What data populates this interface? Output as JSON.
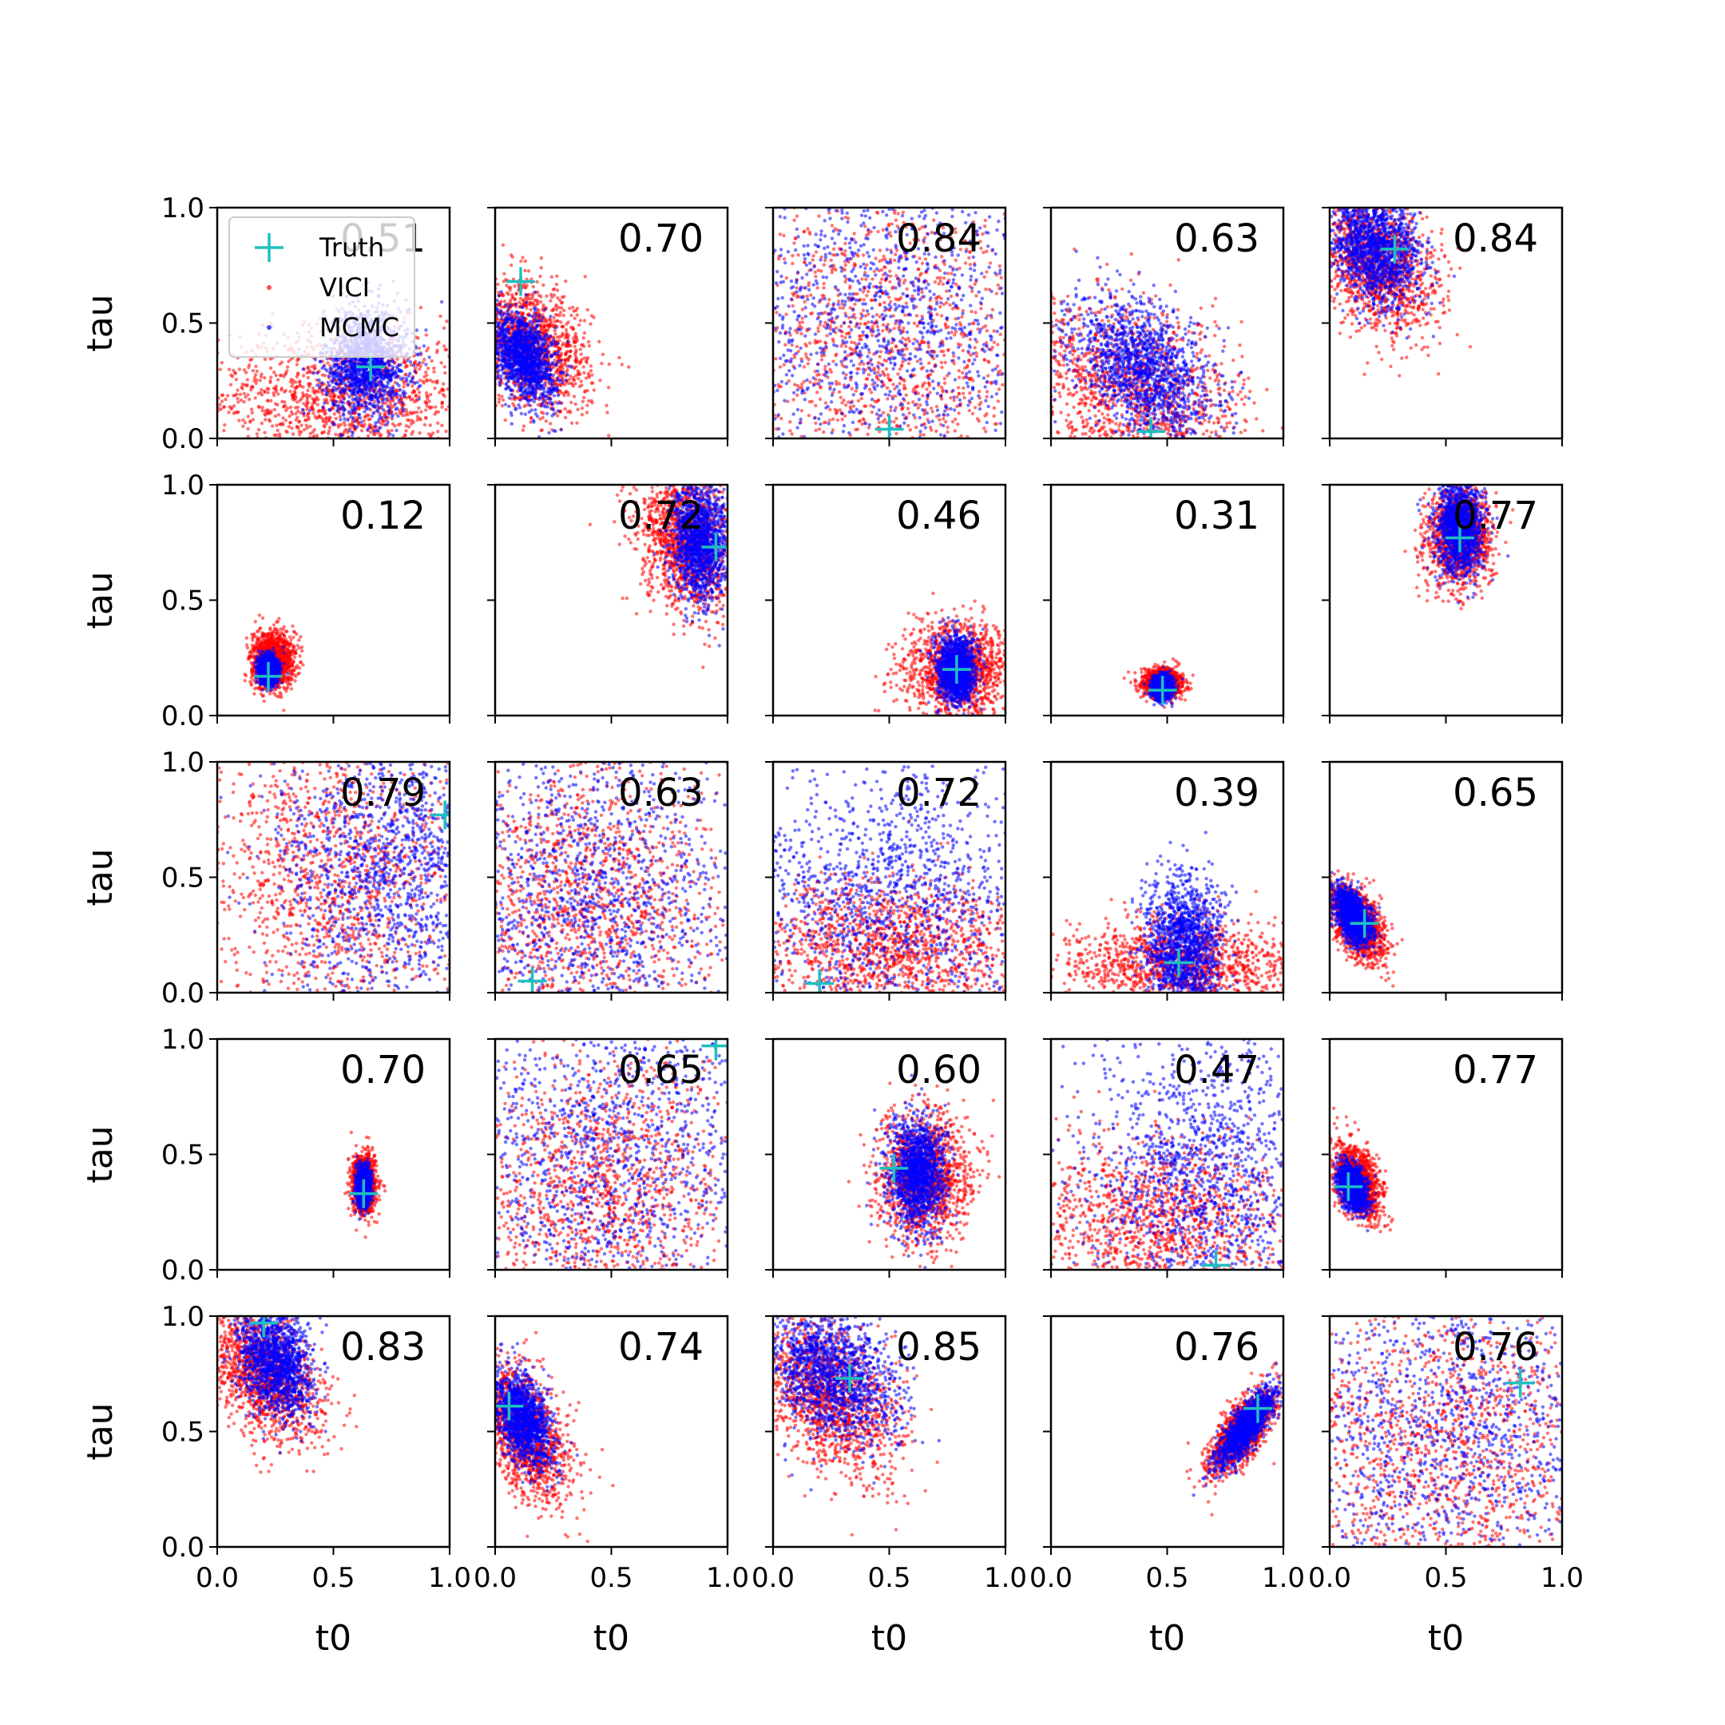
{
  "chart_data": {
    "type": "scatter",
    "layout": "5x5 grid of subplots",
    "xlabel": "t0",
    "ylabel": "tau",
    "xlim": [
      0,
      1
    ],
    "ylim": [
      0,
      1
    ],
    "xticks": [
      "0.0",
      "0.5",
      "1.0"
    ],
    "yticks": [
      "0.0",
      "0.5",
      "1.0"
    ],
    "legend": {
      "placement": "upper-left of first subplot",
      "entries": [
        {
          "label": "Truth",
          "marker": "plus",
          "color": "#1fbfbf"
        },
        {
          "label": "VICI",
          "marker": "dot",
          "color": "#ff0000"
        },
        {
          "label": "MCMC",
          "marker": "dot",
          "color": "#0000ff"
        }
      ]
    },
    "colors": {
      "truth": "#1fbfbf",
      "vici": "#ff0000",
      "mcmc": "#0000ff"
    },
    "panels": [
      {
        "score": "0.51",
        "truth": [
          0.66,
          0.31
        ],
        "vici": {
          "mean": [
            0.55,
            0.18
          ],
          "sd": [
            0.3,
            0.15
          ],
          "rho": 0.0
        },
        "mcmc": {
          "mean": [
            0.64,
            0.33
          ],
          "sd": [
            0.09,
            0.12
          ],
          "rho": 0.0
        }
      },
      {
        "score": "0.70",
        "truth": [
          0.11,
          0.68
        ],
        "vici": {
          "mean": [
            0.15,
            0.4
          ],
          "sd": [
            0.13,
            0.14
          ],
          "rho": -0.3
        },
        "mcmc": {
          "mean": [
            0.12,
            0.36
          ],
          "sd": [
            0.07,
            0.1
          ],
          "rho": -0.4
        }
      },
      {
        "score": "0.84",
        "truth": [
          0.5,
          0.04
        ],
        "vici": {
          "mean": [
            0.5,
            0.4
          ],
          "sd": [
            0.35,
            0.35
          ],
          "rho": 0.0
        },
        "mcmc": {
          "mean": [
            0.5,
            0.5
          ],
          "sd": [
            0.4,
            0.4
          ],
          "rho": 0.0
        }
      },
      {
        "score": "0.63",
        "truth": [
          0.43,
          0.03
        ],
        "vici": {
          "mean": [
            0.35,
            0.2
          ],
          "sd": [
            0.25,
            0.2
          ],
          "rho": -0.3
        },
        "mcmc": {
          "mean": [
            0.4,
            0.3
          ],
          "sd": [
            0.15,
            0.15
          ],
          "rho": -0.4
        }
      },
      {
        "score": "0.84",
        "truth": [
          0.28,
          0.82
        ],
        "vici": {
          "mean": [
            0.2,
            0.75
          ],
          "sd": [
            0.13,
            0.15
          ],
          "rho": -0.3
        },
        "mcmc": {
          "mean": [
            0.2,
            0.82
          ],
          "sd": [
            0.1,
            0.12
          ],
          "rho": -0.2
        }
      },
      {
        "score": "0.12",
        "truth": [
          0.22,
          0.17
        ],
        "vici": {
          "mean": [
            0.24,
            0.24
          ],
          "sd": [
            0.045,
            0.06
          ],
          "rho": 0.0
        },
        "mcmc": {
          "mean": [
            0.22,
            0.2
          ],
          "sd": [
            0.02,
            0.03
          ],
          "rho": 0.0
        }
      },
      {
        "score": "0.72",
        "truth": [
          0.95,
          0.73
        ],
        "vici": {
          "mean": [
            0.82,
            0.75
          ],
          "sd": [
            0.1,
            0.15
          ],
          "rho": -0.2
        },
        "mcmc": {
          "mean": [
            0.88,
            0.75
          ],
          "sd": [
            0.06,
            0.13
          ],
          "rho": -0.1
        }
      },
      {
        "score": "0.46",
        "truth": [
          0.79,
          0.2
        ],
        "vici": {
          "mean": [
            0.8,
            0.2
          ],
          "sd": [
            0.12,
            0.1
          ],
          "rho": 0.0
        },
        "mcmc": {
          "mean": [
            0.79,
            0.2
          ],
          "sd": [
            0.04,
            0.07
          ],
          "rho": 0.0
        }
      },
      {
        "score": "0.31",
        "truth": [
          0.48,
          0.11
        ],
        "vici": {
          "mean": [
            0.48,
            0.14
          ],
          "sd": [
            0.04,
            0.03
          ],
          "rho": 0.0
        },
        "mcmc": {
          "mean": [
            0.48,
            0.12
          ],
          "sd": [
            0.02,
            0.025
          ],
          "rho": 0.0
        }
      },
      {
        "score": "0.77",
        "truth": [
          0.56,
          0.77
        ],
        "vici": {
          "mean": [
            0.56,
            0.78
          ],
          "sd": [
            0.07,
            0.11
          ],
          "rho": 0.0
        },
        "mcmc": {
          "mean": [
            0.56,
            0.82
          ],
          "sd": [
            0.05,
            0.1
          ],
          "rho": 0.0
        }
      },
      {
        "score": "0.79",
        "truth": [
          0.98,
          0.77
        ],
        "vici": {
          "mean": [
            0.5,
            0.5
          ],
          "sd": [
            0.3,
            0.35
          ],
          "rho": 0.0
        },
        "mcmc": {
          "mean": [
            0.75,
            0.55
          ],
          "sd": [
            0.25,
            0.3
          ],
          "rho": 0.0
        }
      },
      {
        "score": "0.63",
        "truth": [
          0.16,
          0.05
        ],
        "vici": {
          "mean": [
            0.4,
            0.4
          ],
          "sd": [
            0.3,
            0.3
          ],
          "rho": 0.0
        },
        "mcmc": {
          "mean": [
            0.4,
            0.4
          ],
          "sd": [
            0.35,
            0.35
          ],
          "rho": 0.0
        }
      },
      {
        "score": "0.72",
        "truth": [
          0.2,
          0.04
        ],
        "vici": {
          "mean": [
            0.5,
            0.2
          ],
          "sd": [
            0.3,
            0.15
          ],
          "rho": 0.0
        },
        "mcmc": {
          "mean": [
            0.5,
            0.4
          ],
          "sd": [
            0.35,
            0.3
          ],
          "rho": 0.0
        }
      },
      {
        "score": "0.39",
        "truth": [
          0.55,
          0.13
        ],
        "vici": {
          "mean": [
            0.55,
            0.12
          ],
          "sd": [
            0.25,
            0.1
          ],
          "rho": 0.0
        },
        "mcmc": {
          "mean": [
            0.57,
            0.2
          ],
          "sd": [
            0.08,
            0.15
          ],
          "rho": 0.0
        }
      },
      {
        "score": "0.65",
        "truth": [
          0.15,
          0.3
        ],
        "vici": {
          "mean": [
            0.12,
            0.3
          ],
          "sd": [
            0.06,
            0.08
          ],
          "rho": -0.5
        },
        "mcmc": {
          "mean": [
            0.1,
            0.33
          ],
          "sd": [
            0.04,
            0.06
          ],
          "rho": -0.5
        }
      },
      {
        "score": "0.70",
        "truth": [
          0.63,
          0.33
        ],
        "vici": {
          "mean": [
            0.63,
            0.37
          ],
          "sd": [
            0.025,
            0.06
          ],
          "rho": 0.0
        },
        "mcmc": {
          "mean": [
            0.63,
            0.36
          ],
          "sd": [
            0.015,
            0.04
          ],
          "rho": 0.0
        }
      },
      {
        "score": "0.65",
        "truth": [
          0.95,
          0.97
        ],
        "vici": {
          "mean": [
            0.45,
            0.35
          ],
          "sd": [
            0.3,
            0.3
          ],
          "rho": 0.0
        },
        "mcmc": {
          "mean": [
            0.5,
            0.5
          ],
          "sd": [
            0.35,
            0.4
          ],
          "rho": 0.0
        }
      },
      {
        "score": "0.60",
        "truth": [
          0.52,
          0.44
        ],
        "vici": {
          "mean": [
            0.65,
            0.4
          ],
          "sd": [
            0.1,
            0.14
          ],
          "rho": 0.0
        },
        "mcmc": {
          "mean": [
            0.62,
            0.42
          ],
          "sd": [
            0.06,
            0.12
          ],
          "rho": 0.0
        }
      },
      {
        "score": "0.47",
        "truth": [
          0.71,
          0.02
        ],
        "vici": {
          "mean": [
            0.45,
            0.2
          ],
          "sd": [
            0.3,
            0.2
          ],
          "rho": 0.0
        },
        "mcmc": {
          "mean": [
            0.65,
            0.4
          ],
          "sd": [
            0.25,
            0.35
          ],
          "rho": 0.0
        }
      },
      {
        "score": "0.77",
        "truth": [
          0.08,
          0.36
        ],
        "vici": {
          "mean": [
            0.12,
            0.38
          ],
          "sd": [
            0.05,
            0.08
          ],
          "rho": -0.4
        },
        "mcmc": {
          "mean": [
            0.1,
            0.36
          ],
          "sd": [
            0.03,
            0.05
          ],
          "rho": -0.4
        }
      },
      {
        "score": "0.83",
        "truth": [
          0.2,
          0.97
        ],
        "vici": {
          "mean": [
            0.2,
            0.75
          ],
          "sd": [
            0.12,
            0.14
          ],
          "rho": -0.4
        },
        "mcmc": {
          "mean": [
            0.25,
            0.8
          ],
          "sd": [
            0.08,
            0.12
          ],
          "rho": -0.3
        }
      },
      {
        "score": "0.74",
        "truth": [
          0.06,
          0.61
        ],
        "vici": {
          "mean": [
            0.12,
            0.5
          ],
          "sd": [
            0.1,
            0.15
          ],
          "rho": -0.5
        },
        "mcmc": {
          "mean": [
            0.12,
            0.55
          ],
          "sd": [
            0.06,
            0.1
          ],
          "rho": -0.4
        }
      },
      {
        "score": "0.85",
        "truth": [
          0.33,
          0.73
        ],
        "vici": {
          "mean": [
            0.25,
            0.65
          ],
          "sd": [
            0.15,
            0.17
          ],
          "rho": -0.4
        },
        "mcmc": {
          "mean": [
            0.25,
            0.75
          ],
          "sd": [
            0.14,
            0.14
          ],
          "rho": -0.3
        }
      },
      {
        "score": "0.76",
        "truth": [
          0.89,
          0.6
        ],
        "vici": {
          "mean": [
            0.82,
            0.5
          ],
          "sd": [
            0.07,
            0.09
          ],
          "rho": 0.7
        },
        "mcmc": {
          "mean": [
            0.84,
            0.52
          ],
          "sd": [
            0.06,
            0.08
          ],
          "rho": 0.8
        }
      },
      {
        "score": "0.76",
        "truth": [
          0.82,
          0.71
        ],
        "vici": {
          "mean": [
            0.5,
            0.45
          ],
          "sd": [
            0.35,
            0.35
          ],
          "rho": 0.0
        },
        "mcmc": {
          "mean": [
            0.5,
            0.5
          ],
          "sd": [
            0.4,
            0.4
          ],
          "rho": 0.0
        }
      }
    ]
  }
}
